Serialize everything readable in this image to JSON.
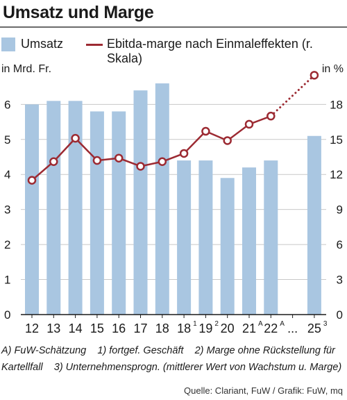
{
  "title": "Umsatz und Marge",
  "legend": {
    "bars_label": "Umsatz",
    "line_label": "Ebitda-marge nach Einmaleffekten (r. Skala)"
  },
  "colors": {
    "bar": "#a9c6e1",
    "line": "#9c2a32",
    "grid": "#c8c8c8"
  },
  "axis_units": {
    "left": "in Mrd. Fr.",
    "right": "in %"
  },
  "footnotes": {
    "line1": "A) FuW-Schätzung    1) fortgef. Geschäft    2) Marge ohne Rückstellung für",
    "line2": "Kartellfall    3) Unternehmensprogn. (mittlerer Wert von Wachstum u. Marge)"
  },
  "source": "Quelle: Clariant, FuW / Grafik: FuW, mq",
  "chart_data": {
    "type": "bar",
    "categories": [
      {
        "label": "12",
        "sup": ""
      },
      {
        "label": "13",
        "sup": ""
      },
      {
        "label": "14",
        "sup": ""
      },
      {
        "label": "15",
        "sup": ""
      },
      {
        "label": "16",
        "sup": ""
      },
      {
        "label": "17",
        "sup": ""
      },
      {
        "label": "18",
        "sup": ""
      },
      {
        "label": "18",
        "sup": "1"
      },
      {
        "label": "19",
        "sup": "2"
      },
      {
        "label": "20",
        "sup": ""
      },
      {
        "label": "21",
        "sup": "A"
      },
      {
        "label": "22",
        "sup": "A"
      },
      {
        "label": "...",
        "sup": ""
      },
      {
        "label": "25",
        "sup": "3"
      }
    ],
    "series": [
      {
        "name": "Umsatz",
        "axis": "left",
        "type": "bar",
        "values": [
          6.0,
          6.1,
          6.1,
          5.8,
          5.8,
          6.4,
          6.6,
          4.4,
          4.4,
          3.9,
          4.2,
          4.4,
          null,
          5.1
        ]
      },
      {
        "name": "Ebitda-marge nach Einmaleffekten (r. Skala)",
        "axis": "right",
        "type": "line",
        "values": [
          11.5,
          13.1,
          15.1,
          13.2,
          13.4,
          12.7,
          13.1,
          13.8,
          15.7,
          14.9,
          16.3,
          17.0,
          null,
          20.5
        ],
        "dotted_from_index": 11
      }
    ],
    "ylim_left": [
      0,
      6.8
    ],
    "yticks_left": [
      0,
      1,
      2,
      3,
      4,
      5,
      6
    ],
    "ylim_right": [
      0,
      20.4
    ],
    "yticks_right": [
      0,
      3,
      6,
      9,
      12,
      15,
      18
    ],
    "grid": true
  }
}
